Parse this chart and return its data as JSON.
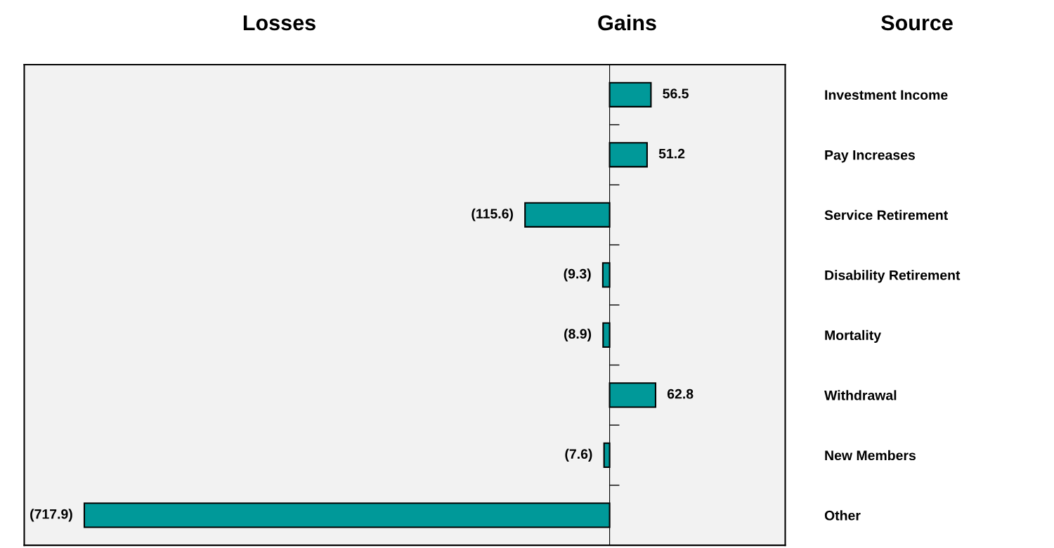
{
  "chart_data": {
    "type": "bar",
    "orientation": "horizontal",
    "categories": [
      "Investment Income",
      "Pay Increases",
      "Service Retirement",
      "Disability Retirement",
      "Mortality",
      "Withdrawal",
      "New Members",
      "Other"
    ],
    "values": [
      56.5,
      51.2,
      -115.6,
      -9.3,
      -8.9,
      62.8,
      -7.6,
      -717.9
    ],
    "value_labels": [
      "56.5",
      "51.2",
      "(115.6)",
      "(9.3)",
      "(8.9)",
      "62.8",
      "(7.6)",
      "(717.9)"
    ],
    "color": "#009999",
    "xlim": [
      -800,
      240
    ],
    "annotations": [
      "Losses",
      "Gains",
      "Source"
    ]
  }
}
